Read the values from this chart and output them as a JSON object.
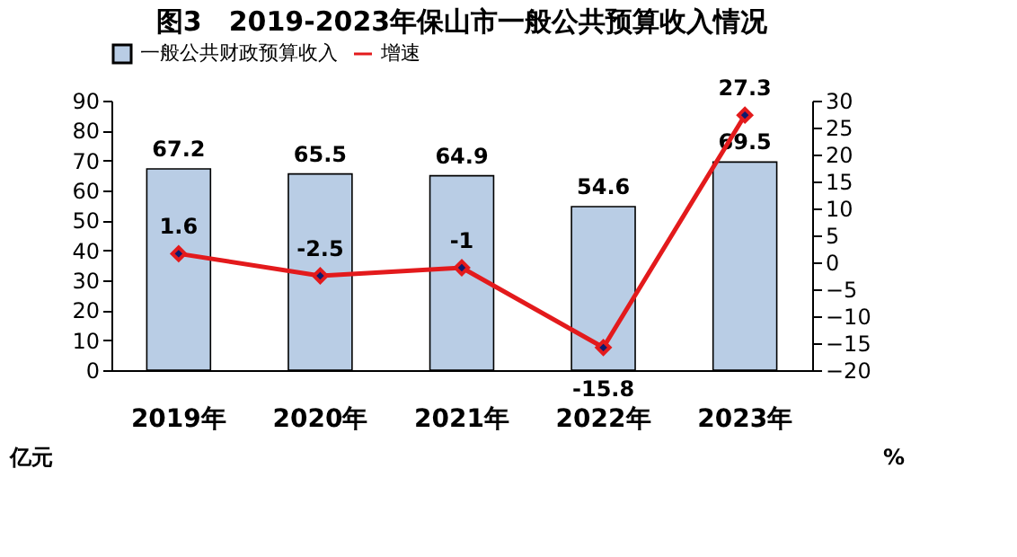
{
  "chart_data": {
    "type": "bar",
    "title": "图3　2019-2023年保山市一般公共预算收入情况",
    "categories": [
      "2019年",
      "2020年",
      "2021年",
      "2022年",
      "2023年"
    ],
    "series": [
      {
        "name": "一般公共财政预算收入",
        "type": "bar",
        "color": "#b9cde5",
        "values": [
          67.2,
          65.5,
          64.9,
          54.6,
          69.5
        ]
      },
      {
        "name": "增速",
        "type": "line",
        "axis": "y2",
        "color": "#e31a1c",
        "values": [
          1.6,
          -2.5,
          -1,
          -15.8,
          27.3
        ]
      }
    ],
    "ylabel": "亿元",
    "y2label": "%",
    "ylim": [
      0,
      90
    ],
    "yticks": [
      0,
      10,
      20,
      30,
      40,
      50,
      60,
      70,
      80,
      90
    ],
    "y2lim": [
      -20,
      30
    ],
    "y2ticks": [
      -20,
      -15,
      -10,
      -5,
      0,
      5,
      10,
      15,
      20,
      25,
      30
    ],
    "data_labels": true,
    "marker": "diamond",
    "legend": "top",
    "grid": false
  }
}
